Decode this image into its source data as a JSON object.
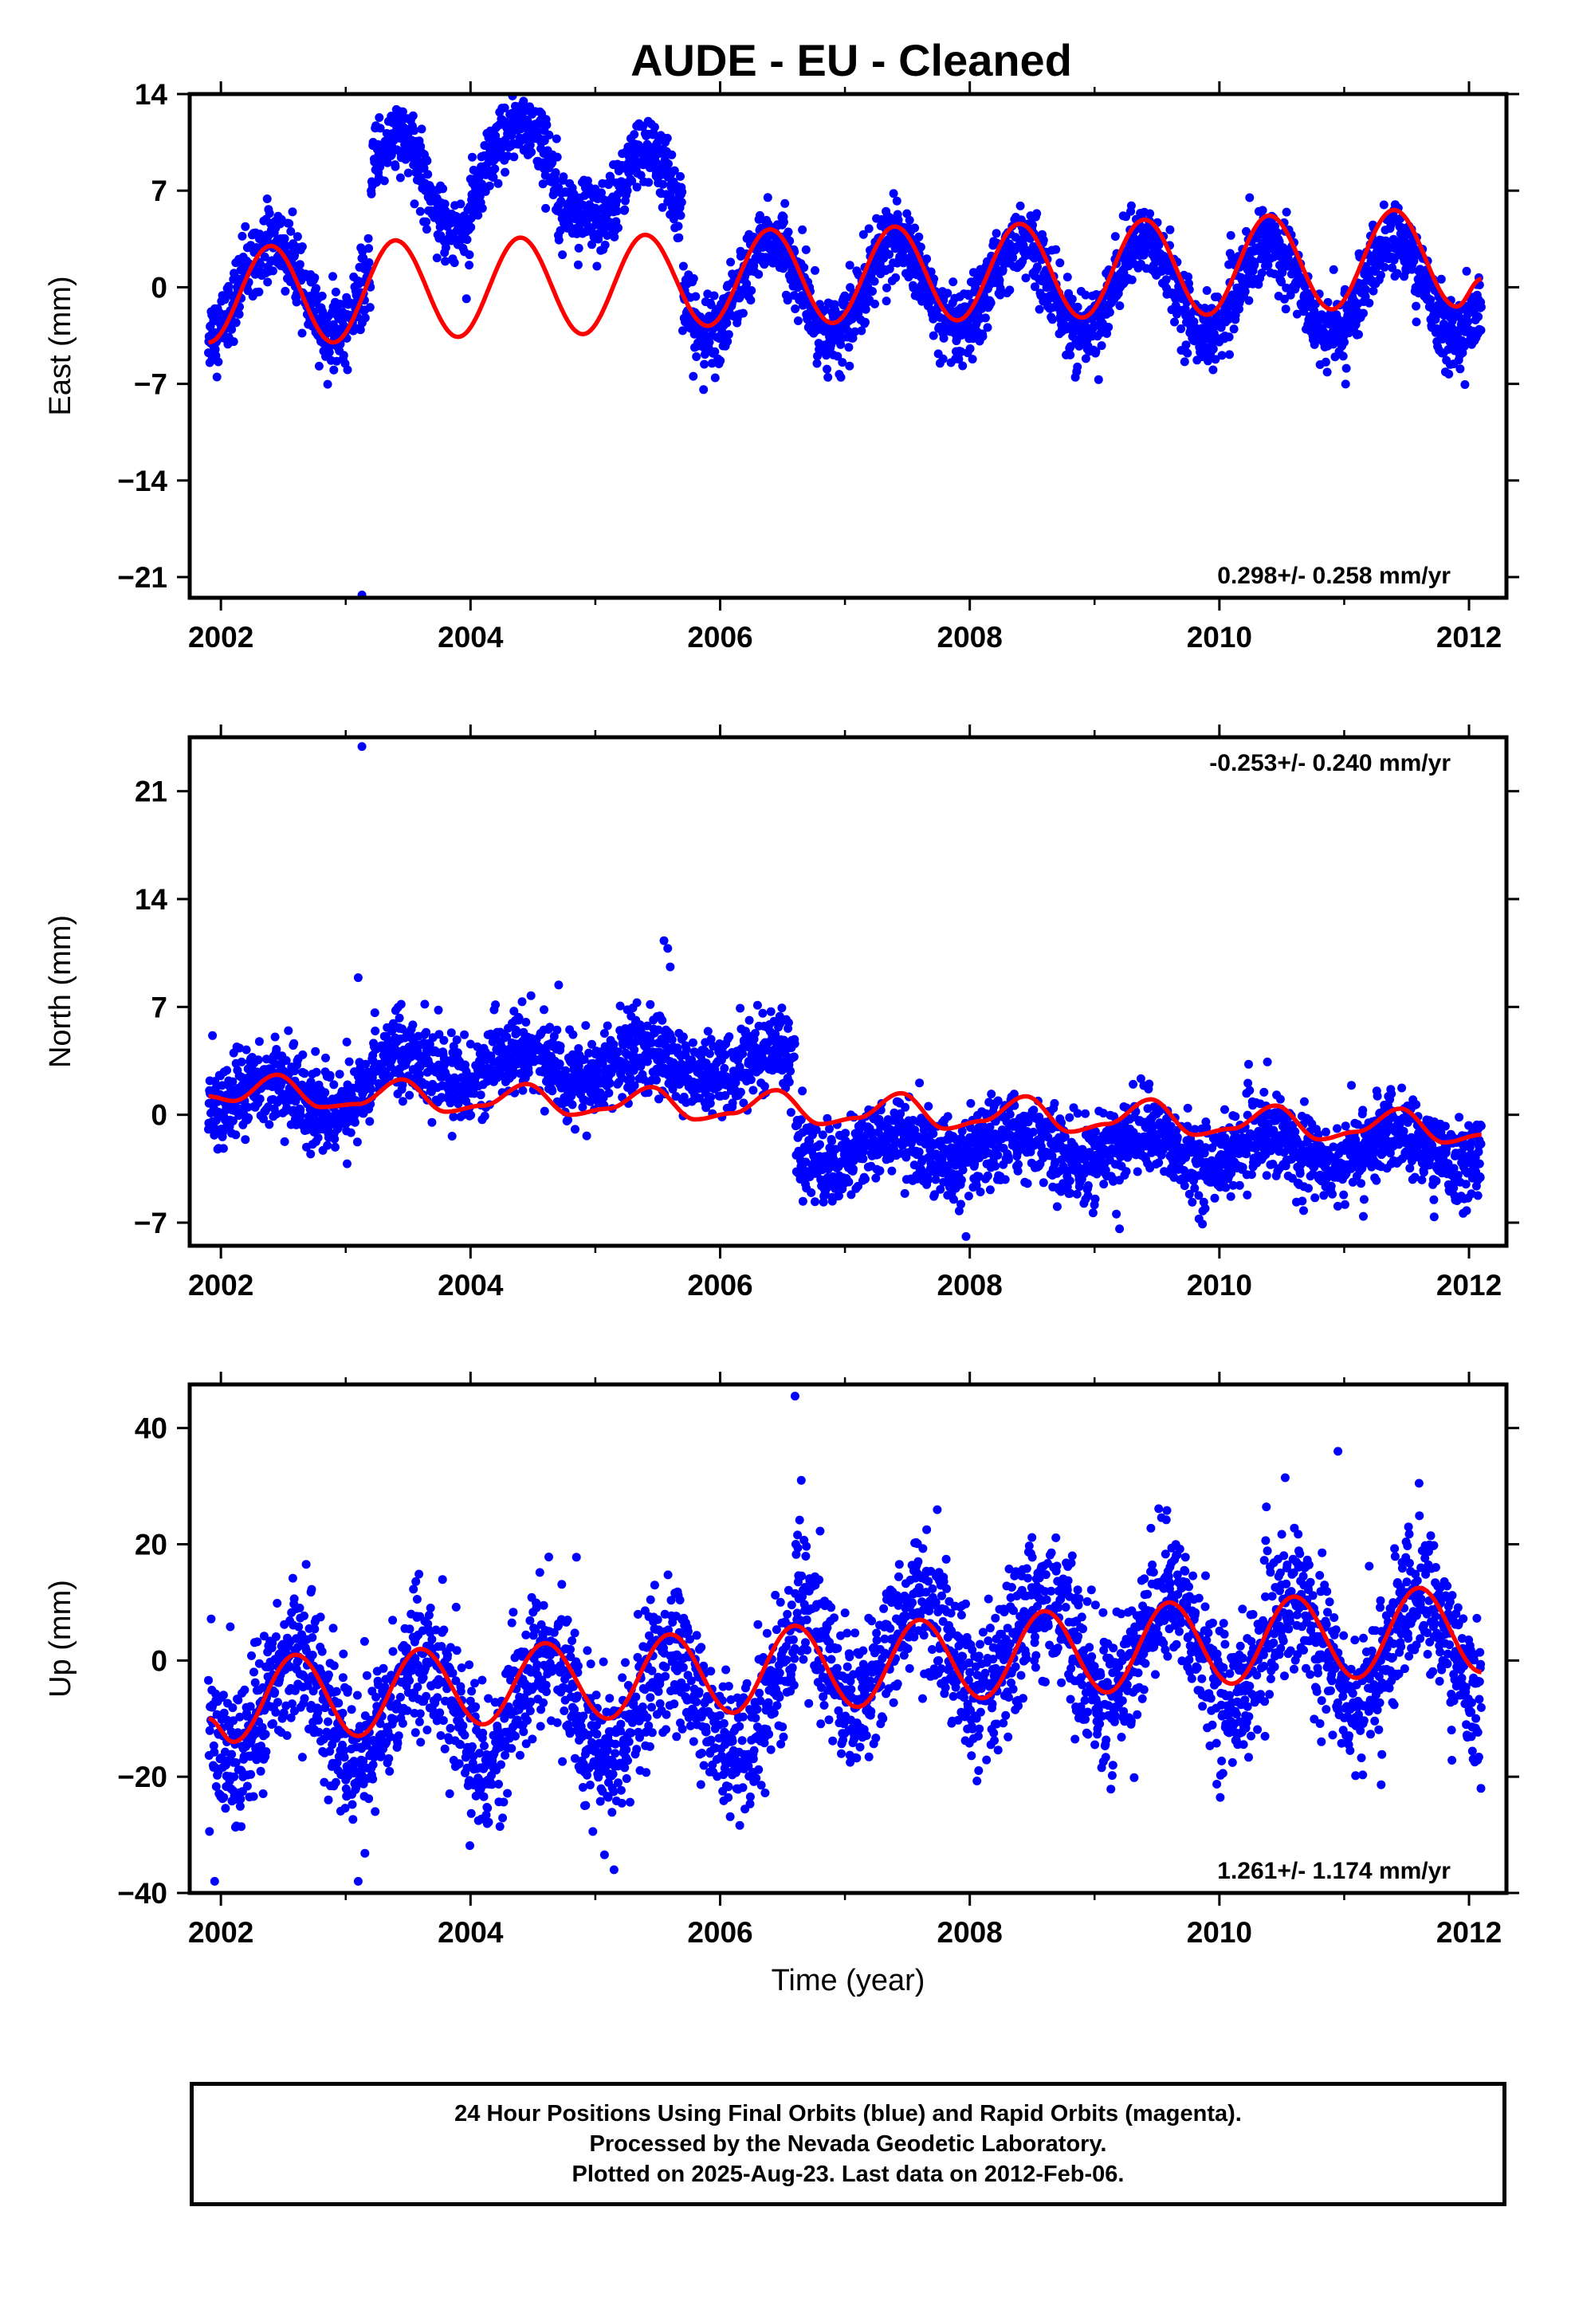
{
  "title": "AUDE  - EU - Cleaned",
  "caption": {
    "line1": "24 Hour Positions Using Final Orbits (blue) and Rapid Orbits (magenta).",
    "line2": "Processed by the Nevada Geodetic Laboratory.",
    "line3": "Plotted on 2025-Aug-23. Last data on 2012-Feb-06."
  },
  "colors": {
    "points": "#0000ff",
    "fit": "#ff0000",
    "axis": "#000000"
  },
  "chart_data": [
    {
      "type": "scatter",
      "ylabel": "East (mm)",
      "xlabel": "",
      "xlim": [
        2001.75,
        2012.3
      ],
      "ylim": [
        -22.5,
        14
      ],
      "xticks": [
        2002,
        2004,
        2006,
        2008,
        2010,
        2012
      ],
      "yticks": [
        -21,
        -14,
        -7,
        0,
        7,
        14
      ],
      "rate_label": "0.298+/- 0.258 mm/yr",
      "rate_position": "bottom-right",
      "data_start": 2001.9,
      "data_end": 2012.1,
      "offset_segments": [
        {
          "start": 2001.9,
          "end": 2003.2,
          "offset": 0
        },
        {
          "start": 2003.2,
          "end": 2004.0,
          "offset": 7.5
        },
        {
          "start": 2004.0,
          "end": 2005.0,
          "offset": 8.5
        },
        {
          "start": 2005.0,
          "end": 2005.7,
          "offset": 6.5
        },
        {
          "start": 2005.7,
          "end": 2012.1,
          "offset": 0
        }
      ],
      "annual_amplitude": 3.4,
      "annual_phase_peak": 2002.4,
      "point_scatter": 1.3,
      "fit_curve": [
        [
          2001.9,
          -4.0
        ],
        [
          2002.4,
          3.0
        ],
        [
          2002.9,
          -4.0
        ],
        [
          2003.4,
          3.4
        ],
        [
          2003.9,
          -3.6
        ],
        [
          2004.4,
          3.6
        ],
        [
          2004.9,
          -3.4
        ],
        [
          2005.4,
          3.8
        ],
        [
          2005.9,
          -2.8
        ],
        [
          2006.4,
          4.2
        ],
        [
          2006.9,
          -2.6
        ],
        [
          2007.4,
          4.4
        ],
        [
          2007.9,
          -2.4
        ],
        [
          2008.4,
          4.6
        ],
        [
          2008.9,
          -2.2
        ],
        [
          2009.4,
          4.9
        ],
        [
          2009.9,
          -2.0
        ],
        [
          2010.4,
          5.2
        ],
        [
          2010.9,
          -1.6
        ],
        [
          2011.4,
          5.6
        ],
        [
          2011.9,
          -1.4
        ],
        [
          2012.1,
          0.6
        ]
      ],
      "outliers": [
        [
          2003.13,
          -22.3
        ]
      ]
    },
    {
      "type": "scatter",
      "ylabel": "North (mm)",
      "xlabel": "",
      "xlim": [
        2001.75,
        2012.3
      ],
      "ylim": [
        -8.5,
        24.5
      ],
      "xticks": [
        2002,
        2004,
        2006,
        2008,
        2010,
        2012
      ],
      "yticks": [
        -7,
        0,
        7,
        14,
        21
      ],
      "rate_label": "-0.253+/- 0.240 mm/yr",
      "rate_position": "top-right",
      "data_start": 2001.9,
      "data_end": 2012.1,
      "offset_segments": [
        {
          "start": 2001.9,
          "end": 2003.2,
          "offset": 1.2
        },
        {
          "start": 2003.2,
          "end": 2006.6,
          "offset": 3.2
        },
        {
          "start": 2006.6,
          "end": 2012.1,
          "offset": -2.2
        }
      ],
      "annual_amplitude": 1.0,
      "annual_phase_peak": 2002.4,
      "point_scatter": 1.3,
      "fit_curve": [
        [
          2001.9,
          1.2
        ],
        [
          2002.1,
          0.9
        ],
        [
          2002.45,
          2.6
        ],
        [
          2002.8,
          0.5
        ],
        [
          2003.1,
          0.7
        ],
        [
          2003.45,
          2.3
        ],
        [
          2003.8,
          0.2
        ],
        [
          2004.1,
          0.6
        ],
        [
          2004.45,
          2.0
        ],
        [
          2004.8,
          0.0
        ],
        [
          2005.1,
          0.4
        ],
        [
          2005.45,
          1.8
        ],
        [
          2005.8,
          -0.3
        ],
        [
          2006.1,
          0.1
        ],
        [
          2006.45,
          1.6
        ],
        [
          2006.8,
          -0.6
        ],
        [
          2007.1,
          -0.2
        ],
        [
          2007.45,
          1.4
        ],
        [
          2007.8,
          -0.9
        ],
        [
          2008.1,
          -0.4
        ],
        [
          2008.45,
          1.2
        ],
        [
          2008.8,
          -1.1
        ],
        [
          2009.1,
          -0.6
        ],
        [
          2009.45,
          1.0
        ],
        [
          2009.8,
          -1.3
        ],
        [
          2010.1,
          -0.9
        ],
        [
          2010.45,
          0.6
        ],
        [
          2010.8,
          -1.6
        ],
        [
          2011.1,
          -1.1
        ],
        [
          2011.45,
          0.4
        ],
        [
          2011.8,
          -1.8
        ],
        [
          2012.1,
          -1.3
        ]
      ],
      "outliers": [
        [
          2003.13,
          23.9
        ],
        [
          2003.1,
          8.9
        ],
        [
          2005.55,
          11.3
        ],
        [
          2005.58,
          10.8
        ],
        [
          2005.6,
          9.6
        ],
        [
          2007.97,
          -7.9
        ],
        [
          2009.2,
          -7.4
        ]
      ]
    },
    {
      "type": "scatter",
      "ylabel": "Up (mm)",
      "xlabel": "Time (year)",
      "xlim": [
        2001.75,
        2012.3
      ],
      "ylim": [
        -40,
        47.5
      ],
      "xticks": [
        2002,
        2004,
        2006,
        2008,
        2010,
        2012
      ],
      "yticks": [
        -40,
        -20,
        0,
        20,
        40
      ],
      "rate_label": "1.261+/- 1.174 mm/yr",
      "rate_position": "bottom-right",
      "data_start": 2001.9,
      "data_end": 2012.1,
      "offset_segments": [
        {
          "start": 2001.9,
          "end": 2006.6,
          "offset": -8
        },
        {
          "start": 2006.6,
          "end": 2012.1,
          "offset": 2
        }
      ],
      "annual_amplitude": 9.0,
      "annual_phase_peak": 2002.6,
      "point_scatter": 6.0,
      "fit_curve": [
        [
          2001.9,
          -10
        ],
        [
          2002.1,
          -14
        ],
        [
          2002.6,
          1
        ],
        [
          2003.1,
          -13
        ],
        [
          2003.6,
          2
        ],
        [
          2004.1,
          -11
        ],
        [
          2004.6,
          3
        ],
        [
          2005.1,
          -10
        ],
        [
          2005.6,
          4.5
        ],
        [
          2006.1,
          -9
        ],
        [
          2006.6,
          6
        ],
        [
          2007.1,
          -8
        ],
        [
          2007.6,
          7
        ],
        [
          2008.1,
          -6.5
        ],
        [
          2008.6,
          8.5
        ],
        [
          2009.1,
          -5.5
        ],
        [
          2009.6,
          10
        ],
        [
          2010.1,
          -4
        ],
        [
          2010.6,
          11
        ],
        [
          2011.1,
          -3
        ],
        [
          2011.6,
          12.5
        ],
        [
          2012.1,
          -2
        ]
      ],
      "outliers": [
        [
          2006.6,
          45.5
        ],
        [
          2010.95,
          36
        ],
        [
          2011.6,
          30.5
        ],
        [
          2006.65,
          31
        ],
        [
          2001.95,
          -38
        ],
        [
          2003.1,
          -38
        ],
        [
          2005.15,
          -36
        ]
      ]
    }
  ]
}
